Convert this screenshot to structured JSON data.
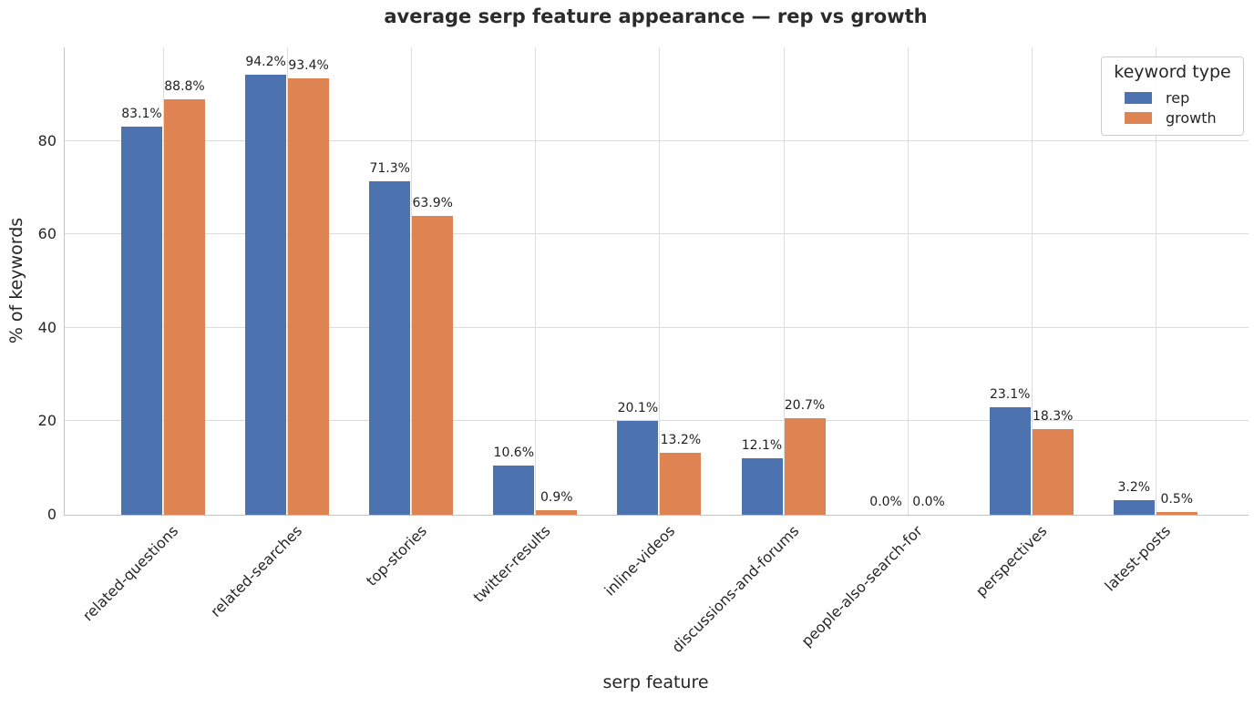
{
  "chart_data": {
    "type": "bar",
    "title": "average serp feature appearance — rep vs growth",
    "xlabel": "serp feature",
    "ylabel": "% of keywords",
    "categories": [
      "related-questions",
      "related-searches",
      "top-stories",
      "twitter-results",
      "inline-videos",
      "discussions-and-forums",
      "people-also-search-for",
      "perspectives",
      "latest-posts"
    ],
    "series": [
      {
        "name": "rep",
        "color": "#4C72B0",
        "values": [
          83.1,
          94.2,
          71.3,
          10.6,
          20.1,
          12.1,
          0.0,
          23.1,
          3.2
        ],
        "labels": [
          "83.1%",
          "94.2%",
          "71.3%",
          "10.6%",
          "20.1%",
          "12.1%",
          "0.0%",
          "23.1%",
          "3.2%"
        ]
      },
      {
        "name": "growth",
        "color": "#DD8452",
        "values": [
          88.8,
          93.4,
          63.9,
          0.9,
          13.2,
          20.7,
          0.0,
          18.3,
          0.5
        ],
        "labels": [
          "88.8%",
          "93.4%",
          "63.9%",
          "0.9%",
          "13.2%",
          "20.7%",
          "0.0%",
          "18.3%",
          "0.5%"
        ]
      }
    ],
    "ylim": [
      0,
      100
    ],
    "yticks": [
      0,
      20,
      40,
      60,
      80
    ],
    "ytick_labels": [
      "0",
      "20",
      "40",
      "60",
      "80"
    ],
    "grid": true,
    "grid_style": "whitegrid-horizontal-and-vertical",
    "legend": {
      "title": "keyword type",
      "position": "upper right",
      "entries": [
        "rep",
        "growth"
      ]
    },
    "colors": {
      "rep": "#4C72B0",
      "growth": "#DD8452",
      "gridline": "#dcdcdc",
      "spine": "#c0c4c8",
      "text": "#262626"
    }
  }
}
